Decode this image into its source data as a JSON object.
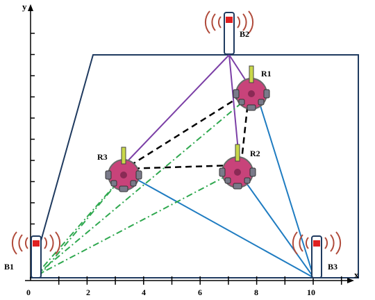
{
  "axes": {
    "x_label": "x",
    "y_label": "y",
    "origin_label": "0",
    "x_ticks": [
      "2",
      "4",
      "6",
      "8",
      "10"
    ]
  },
  "beacons": [
    {
      "name": "B1"
    },
    {
      "name": "B2"
    },
    {
      "name": "B3"
    }
  ],
  "robots": [
    {
      "name": "R1"
    },
    {
      "name": "R2"
    },
    {
      "name": "R3"
    }
  ],
  "colors": {
    "frame": "#1f3a5f",
    "purple": "#7b3fa6",
    "blue": "#1f7cc1",
    "green": "#2fa84f",
    "black": "#000000",
    "robot_body": "#c8437a",
    "beacon_light": "#e02020",
    "signal": "#b04a3a"
  }
}
